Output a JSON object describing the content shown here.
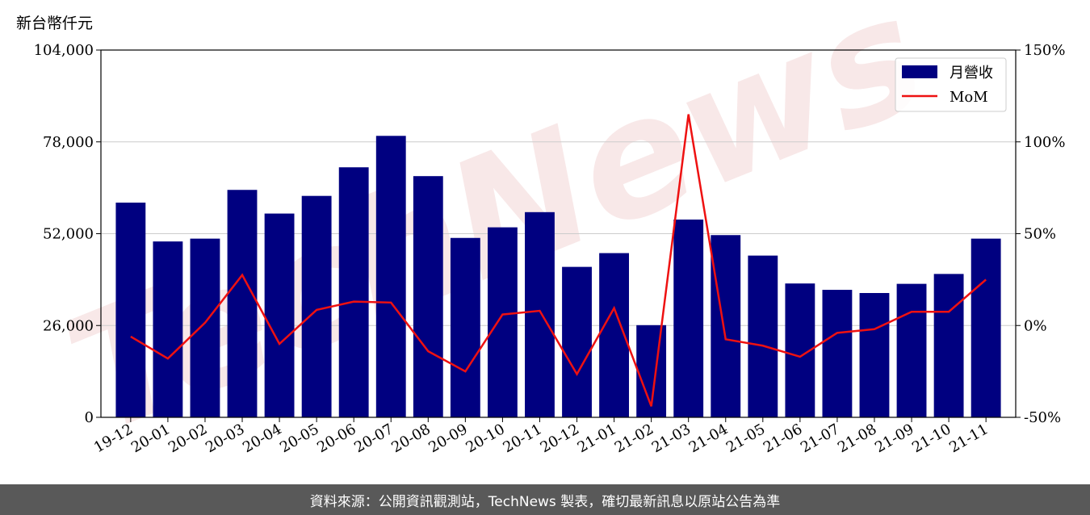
{
  "unit_label": "新台幣仟元",
  "footer_text": "資料來源：公開資訊觀測站，TechNews 製表，確切最新訊息以原站公告為準",
  "watermark_text": "TechNews",
  "chart_data": {
    "type": "bar",
    "categories": [
      "19-12",
      "20-01",
      "20-02",
      "20-03",
      "20-04",
      "20-05",
      "20-06",
      "20-07",
      "20-08",
      "20-09",
      "20-10",
      "20-11",
      "20-12",
      "21-01",
      "21-02",
      "21-03",
      "21-04",
      "21-05",
      "21-06",
      "21-07",
      "21-08",
      "21-09",
      "21-10",
      "21-11"
    ],
    "series": [
      {
        "name": "月營收",
        "type": "bar",
        "axis": "left",
        "color": "#000080",
        "values": [
          60800,
          49800,
          50600,
          64400,
          57700,
          62700,
          70800,
          79700,
          68300,
          50800,
          53800,
          58100,
          42600,
          46500,
          26100,
          56000,
          51600,
          45800,
          37900,
          36100,
          35200,
          37800,
          40600,
          50600
        ]
      },
      {
        "name": "MoM",
        "type": "line",
        "axis": "right",
        "color": "#ee1111",
        "values": [
          -6,
          -18,
          1.5,
          27.5,
          -10,
          8.5,
          13,
          12.5,
          -14,
          -25,
          6,
          8,
          -26.5,
          9.5,
          -44,
          115,
          -7.5,
          -11,
          -17,
          -4,
          -2,
          7.5,
          7.5,
          25
        ]
      }
    ],
    "y_left": {
      "ylim": [
        0,
        104000
      ],
      "ticks": [
        0,
        26000,
        52000,
        78000,
        104000
      ],
      "tick_labels": [
        "0",
        "26,000",
        "52,000",
        "78,000",
        "104,000"
      ]
    },
    "y_right": {
      "ylim": [
        -50,
        150
      ],
      "ticks": [
        -50,
        0,
        50,
        100,
        150
      ],
      "tick_labels": [
        "-50%",
        "0%",
        "50%",
        "100%",
        "150%"
      ]
    },
    "grid": true,
    "legend_position": "top-right",
    "title": "",
    "xlabel": "",
    "ylabel": ""
  }
}
